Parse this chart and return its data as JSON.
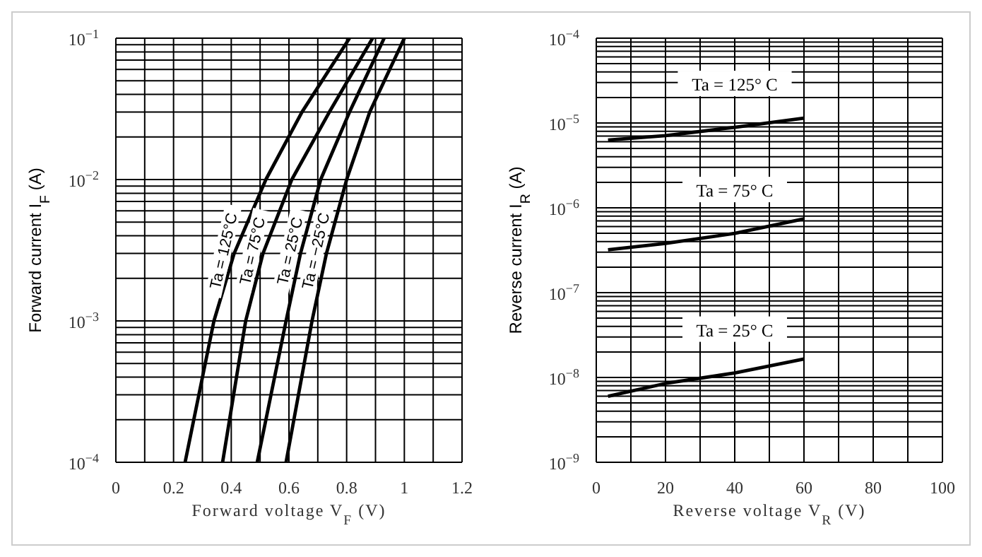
{
  "chart_data": [
    {
      "type": "line",
      "xlabel": "Forward voltage V$_{F}$ (V)",
      "ylabel": "Forward current I$_{F}$ (A)",
      "log": "y",
      "grid": true,
      "legend": false,
      "marker": "none",
      "line_style": "solid",
      "xlim": [
        0,
        1.2
      ],
      "ylim": [
        0.0001,
        0.1
      ],
      "xticks": [
        0,
        {
          "value": 0.1,
          "label": null
        },
        0.2,
        {
          "value": 0.3,
          "label": null
        },
        0.4,
        {
          "value": 0.5,
          "label": null
        },
        0.6,
        {
          "value": 0.7,
          "label": null
        },
        0.8,
        {
          "value": 0.9,
          "label": null
        },
        1.0,
        {
          "value": 1.1,
          "label": null
        },
        1.2
      ],
      "yticks": [
        {
          "value": 0.0001,
          "label": "10$^{−4}$"
        },
        {
          "value": 0.0002,
          "label": null
        },
        {
          "value": 0.0003,
          "label": null
        },
        {
          "value": 0.0004,
          "label": null
        },
        {
          "value": 0.0005,
          "label": null
        },
        {
          "value": 0.0006,
          "label": null
        },
        {
          "value": 0.0007,
          "label": null
        },
        {
          "value": 0.0008,
          "label": null
        },
        {
          "value": 0.0009,
          "label": null
        },
        {
          "value": 0.001,
          "label": "10$^{−3}$"
        },
        {
          "value": 0.002,
          "label": null
        },
        {
          "value": 0.003,
          "label": null
        },
        {
          "value": 0.004,
          "label": null
        },
        {
          "value": 0.005,
          "label": null
        },
        {
          "value": 0.006,
          "label": null
        },
        {
          "value": 0.007,
          "label": null
        },
        {
          "value": 0.008,
          "label": null
        },
        {
          "value": 0.009,
          "label": null
        },
        {
          "value": 0.01,
          "label": "10$^{−2}$"
        },
        {
          "value": 0.02,
          "label": null
        },
        {
          "value": 0.03,
          "label": null
        },
        {
          "value": 0.04,
          "label": null
        },
        {
          "value": 0.05,
          "label": null
        },
        {
          "value": 0.06,
          "label": null
        },
        {
          "value": 0.07,
          "label": null
        },
        {
          "value": 0.08,
          "label": null
        },
        {
          "value": 0.09,
          "label": null
        },
        {
          "value": 0.1,
          "label": "10$^{−1}$"
        }
      ],
      "series": [
        {
          "name": "Ta = 125°C",
          "color": "#000000",
          "x": [
            0.24,
            0.34,
            0.41,
            0.52,
            0.645,
            0.81
          ],
          "values": [
            0.0001,
            0.001,
            0.003,
            0.01,
            0.03,
            0.1
          ]
        },
        {
          "name": "Ta = 75°C",
          "color": "#000000",
          "x": [
            0.37,
            0.45,
            0.51,
            0.61,
            0.74,
            0.89
          ],
          "values": [
            0.0001,
            0.001,
            0.003,
            0.01,
            0.03,
            0.1
          ]
        },
        {
          "name": "Ta = 25°C",
          "color": "#000000",
          "x": [
            0.49,
            0.59,
            0.64,
            0.71,
            0.81,
            0.93
          ],
          "values": [
            0.0001,
            0.001,
            0.003,
            0.01,
            0.03,
            0.1
          ]
        },
        {
          "name": "Ta = −25°C",
          "color": "#000000",
          "x": [
            0.59,
            0.68,
            0.73,
            0.8,
            0.88,
            1.0
          ],
          "values": [
            0.0001,
            0.001,
            0.003,
            0.01,
            0.03,
            0.1
          ]
        }
      ]
    },
    {
      "type": "line",
      "xlabel": "Reverse voltage V$_{R}$ (V)",
      "ylabel": "Reverse current I$_{R}$ (A)",
      "log": "y",
      "grid": true,
      "legend": false,
      "marker": "none",
      "line_style": "solid",
      "xlim": [
        0,
        100
      ],
      "ylim": [
        1e-09,
        0.0001
      ],
      "xticks": [
        0,
        {
          "value": 10,
          "label": null
        },
        20,
        {
          "value": 30,
          "label": null
        },
        40,
        {
          "value": 50,
          "label": null
        },
        60,
        {
          "value": 70,
          "label": null
        },
        80,
        {
          "value": 90,
          "label": null
        },
        100
      ],
      "yticks": [
        {
          "value": 1e-09,
          "label": "10$^{−9}$"
        },
        {
          "value": 2e-09,
          "label": null
        },
        {
          "value": 3e-09,
          "label": null
        },
        {
          "value": 4e-09,
          "label": null
        },
        {
          "value": 5e-09,
          "label": null
        },
        {
          "value": 6e-09,
          "label": null
        },
        {
          "value": 7e-09,
          "label": null
        },
        {
          "value": 8e-09,
          "label": null
        },
        {
          "value": 9e-09,
          "label": null
        },
        {
          "value": 1e-08,
          "label": "10$^{−8}$"
        },
        {
          "value": 2e-08,
          "label": null
        },
        {
          "value": 3e-08,
          "label": null
        },
        {
          "value": 4e-08,
          "label": null
        },
        {
          "value": 5e-08,
          "label": null
        },
        {
          "value": 6e-08,
          "label": null
        },
        {
          "value": 7e-08,
          "label": null
        },
        {
          "value": 8e-08,
          "label": null
        },
        {
          "value": 9e-08,
          "label": null
        },
        {
          "value": 1e-07,
          "label": "10$^{−7}$"
        },
        {
          "value": 2e-07,
          "label": null
        },
        {
          "value": 3e-07,
          "label": null
        },
        {
          "value": 4e-07,
          "label": null
        },
        {
          "value": 5e-07,
          "label": null
        },
        {
          "value": 6e-07,
          "label": null
        },
        {
          "value": 7e-07,
          "label": null
        },
        {
          "value": 8e-07,
          "label": null
        },
        {
          "value": 9e-07,
          "label": null
        },
        {
          "value": 1e-06,
          "label": "10$^{−6}$"
        },
        {
          "value": 2e-06,
          "label": null
        },
        {
          "value": 3e-06,
          "label": null
        },
        {
          "value": 4e-06,
          "label": null
        },
        {
          "value": 5e-06,
          "label": null
        },
        {
          "value": 6e-06,
          "label": null
        },
        {
          "value": 7e-06,
          "label": null
        },
        {
          "value": 8e-06,
          "label": null
        },
        {
          "value": 9e-06,
          "label": null
        },
        {
          "value": 1e-05,
          "label": "10$^{−5}$"
        },
        {
          "value": 2e-05,
          "label": null
        },
        {
          "value": 3e-05,
          "label": null
        },
        {
          "value": 4e-05,
          "label": null
        },
        {
          "value": 5e-05,
          "label": null
        },
        {
          "value": 6e-05,
          "label": null
        },
        {
          "value": 7e-05,
          "label": null
        },
        {
          "value": 8e-05,
          "label": null
        },
        {
          "value": 9e-05,
          "label": null
        },
        {
          "value": 0.0001,
          "label": "10$^{−4}$"
        }
      ],
      "series": [
        {
          "name": "Ta = 125° C",
          "color": "#000000",
          "x": [
            3.4,
            20,
            40,
            60
          ],
          "values": [
            6.3e-06,
            7.1e-06,
            8.9e-06,
            1.14e-05
          ]
        },
        {
          "name": "Ta = 75° C",
          "color": "#000000",
          "x": [
            3.4,
            20,
            40,
            60
          ],
          "values": [
            3.2e-07,
            3.8e-07,
            5e-07,
            7.4e-07
          ]
        },
        {
          "name": "Ta = 25° C",
          "color": "#000000",
          "x": [
            3.4,
            20,
            40,
            60
          ],
          "values": [
            6e-09,
            8.5e-09,
            1.13e-08,
            1.65e-08
          ]
        }
      ]
    }
  ]
}
